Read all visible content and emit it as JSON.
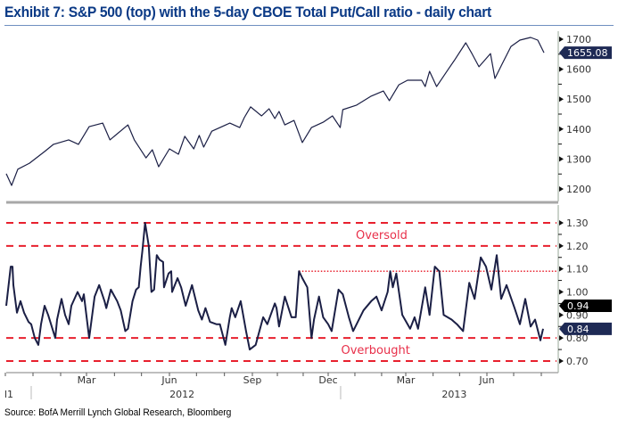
{
  "title": "Exhibit 7: S&P 500 (top) with the 5-day CBOE Total Put/Call ratio - daily chart",
  "source": "Source: BofA Merrill Lynch Global Research, Bloomberg",
  "colors": {
    "title": "#0b3a86",
    "series": "#1b1f45",
    "threshold": "#e8202e",
    "last_value_tag": "#1e2a55",
    "secondary_tag": "#000000"
  },
  "x_axis": {
    "month_labels": [
      "Mar",
      "Jun",
      "Sep",
      "Dec",
      "Mar",
      "Jun"
    ],
    "month_dates": [
      "2012-03-01",
      "2012-06-01",
      "2012-09-01",
      "2012-12-01",
      "2013-03-01",
      "2013-06-01"
    ],
    "year_labels": [
      "l1",
      "2012",
      "2013"
    ]
  },
  "chart_data": [
    {
      "type": "line",
      "panel": "top",
      "series_label": "S&P 500",
      "ylim": [
        1180,
        1730
      ],
      "yticks": [
        "1700",
        "1600",
        "1500",
        "1400",
        "1300",
        "1200"
      ],
      "ytick_values": [
        1700,
        1600,
        1500,
        1400,
        1300,
        1200
      ],
      "last_value_label": "1655.08",
      "grid": false,
      "points": [
        [
          "2011-12-02",
          1251
        ],
        [
          "2011-12-08",
          1212
        ],
        [
          "2011-12-15",
          1266
        ],
        [
          "2011-12-28",
          1286
        ],
        [
          "2012-01-14",
          1325
        ],
        [
          "2012-01-24",
          1349
        ],
        [
          "2012-02-10",
          1364
        ],
        [
          "2012-02-21",
          1349
        ],
        [
          "2012-03-04",
          1408
        ],
        [
          "2012-03-19",
          1420
        ],
        [
          "2012-03-27",
          1364
        ],
        [
          "2012-04-16",
          1414
        ],
        [
          "2012-04-23",
          1364
        ],
        [
          "2012-05-06",
          1304
        ],
        [
          "2012-05-13",
          1331
        ],
        [
          "2012-05-20",
          1274
        ],
        [
          "2012-06-01",
          1334
        ],
        [
          "2012-06-11",
          1316
        ],
        [
          "2012-06-18",
          1376
        ],
        [
          "2012-06-28",
          1334
        ],
        [
          "2012-07-04",
          1379
        ],
        [
          "2012-07-09",
          1340
        ],
        [
          "2012-07-18",
          1393
        ],
        [
          "2012-08-07",
          1420
        ],
        [
          "2012-08-18",
          1405
        ],
        [
          "2012-08-23",
          1438
        ],
        [
          "2012-08-30",
          1474
        ],
        [
          "2012-09-12",
          1444
        ],
        [
          "2012-09-21",
          1468
        ],
        [
          "2012-09-28",
          1435
        ],
        [
          "2012-10-03",
          1459
        ],
        [
          "2012-10-10",
          1414
        ],
        [
          "2012-10-21",
          1429
        ],
        [
          "2012-10-31",
          1355
        ],
        [
          "2012-11-11",
          1405
        ],
        [
          "2012-11-25",
          1423
        ],
        [
          "2012-12-06",
          1444
        ],
        [
          "2012-12-15",
          1405
        ],
        [
          "2012-12-18",
          1465
        ],
        [
          "2013-01-03",
          1480
        ],
        [
          "2013-01-20",
          1510
        ],
        [
          "2013-02-03",
          1527
        ],
        [
          "2013-02-10",
          1495
        ],
        [
          "2013-02-21",
          1548
        ],
        [
          "2013-03-03",
          1563
        ],
        [
          "2013-03-19",
          1563
        ],
        [
          "2013-03-23",
          1542
        ],
        [
          "2013-03-28",
          1593
        ],
        [
          "2013-04-05",
          1542
        ],
        [
          "2013-04-18",
          1599
        ],
        [
          "2013-04-25",
          1629
        ],
        [
          "2013-05-08",
          1688
        ],
        [
          "2013-05-15",
          1652
        ],
        [
          "2013-05-23",
          1608
        ],
        [
          "2013-06-05",
          1652
        ],
        [
          "2013-06-10",
          1569
        ],
        [
          "2013-06-18",
          1617
        ],
        [
          "2013-06-28",
          1676
        ],
        [
          "2013-07-08",
          1697
        ],
        [
          "2013-07-20",
          1706
        ],
        [
          "2013-07-28",
          1697
        ],
        [
          "2013-08-04",
          1655.08
        ]
      ]
    },
    {
      "type": "line",
      "panel": "bottom",
      "series_label": "5-day CBOE Total Put/Call ratio",
      "ylim": [
        0.67,
        1.33
      ],
      "yticks": [
        "1.30",
        "1.20",
        "1.10",
        "1.00",
        "0.90",
        "0.80",
        "0.70"
      ],
      "ytick_values": [
        1.3,
        1.2,
        1.1,
        1.0,
        0.9,
        0.8,
        0.7
      ],
      "last_value_label": "0.84",
      "secondary_value_label": "0.94",
      "secondary_value": 0.94,
      "grid": false,
      "dashed_thresholds": [
        1.3,
        1.2,
        0.8,
        0.7
      ],
      "dotted_reference": {
        "value": 1.09,
        "from": "2012-10-27"
      },
      "annotations": [
        {
          "text": "Oversold",
          "date": "2013-02-01",
          "value": 1.25
        },
        {
          "text": "Overbought",
          "date": "2013-01-25",
          "value": 0.75
        }
      ],
      "points": [
        [
          "2011-12-02",
          0.94
        ],
        [
          "2011-12-07",
          1.11
        ],
        [
          "2011-12-09",
          1.11
        ],
        [
          "2011-12-10",
          1.03
        ],
        [
          "2011-12-14",
          0.91
        ],
        [
          "2011-12-18",
          0.96
        ],
        [
          "2011-12-22",
          0.91
        ],
        [
          "2011-12-27",
          0.87
        ],
        [
          "2011-12-30",
          0.86
        ],
        [
          "2012-01-03",
          0.8
        ],
        [
          "2012-01-07",
          0.77
        ],
        [
          "2012-01-10",
          0.86
        ],
        [
          "2012-01-14",
          0.94
        ],
        [
          "2012-01-18",
          0.9
        ],
        [
          "2012-01-26",
          0.8
        ],
        [
          "2012-01-28",
          0.88
        ],
        [
          "2012-02-02",
          0.97
        ],
        [
          "2012-02-06",
          0.9
        ],
        [
          "2012-02-10",
          0.86
        ],
        [
          "2012-02-13",
          0.94
        ],
        [
          "2012-02-20",
          1.0
        ],
        [
          "2012-02-25",
          0.96
        ],
        [
          "2012-02-27",
          0.99
        ],
        [
          "2012-03-04",
          0.8
        ],
        [
          "2012-03-10",
          0.98
        ],
        [
          "2012-03-15",
          1.03
        ],
        [
          "2012-03-21",
          0.96
        ],
        [
          "2012-03-23",
          0.93
        ],
        [
          "2012-03-28",
          1.01
        ],
        [
          "2012-04-04",
          0.96
        ],
        [
          "2012-04-08",
          0.92
        ],
        [
          "2012-04-13",
          0.83
        ],
        [
          "2012-04-16",
          0.84
        ],
        [
          "2012-04-21",
          0.96
        ],
        [
          "2012-04-25",
          1.01
        ],
        [
          "2012-04-28",
          1.02
        ],
        [
          "2012-04-30",
          1.11
        ],
        [
          "2012-05-02",
          1.18
        ],
        [
          "2012-05-05",
          1.3
        ],
        [
          "2012-05-09",
          1.2
        ],
        [
          "2012-05-12",
          1.0
        ],
        [
          "2012-05-15",
          1.01
        ],
        [
          "2012-05-18",
          1.16
        ],
        [
          "2012-05-21",
          1.14
        ],
        [
          "2012-05-25",
          1.13
        ],
        [
          "2012-05-26",
          1.02
        ],
        [
          "2012-05-31",
          1.08
        ],
        [
          "2012-06-03",
          1.09
        ],
        [
          "2012-06-04",
          1.0
        ],
        [
          "2012-06-10",
          1.06
        ],
        [
          "2012-06-14",
          1.02
        ],
        [
          "2012-06-19",
          0.94
        ],
        [
          "2012-06-26",
          1.03
        ],
        [
          "2012-07-03",
          0.92
        ],
        [
          "2012-07-07",
          0.88
        ],
        [
          "2012-07-11",
          0.93
        ],
        [
          "2012-07-16",
          0.87
        ],
        [
          "2012-07-23",
          0.86
        ],
        [
          "2012-07-27",
          0.86
        ],
        [
          "2012-08-02",
          0.77
        ],
        [
          "2012-08-07",
          0.89
        ],
        [
          "2012-08-09",
          0.93
        ],
        [
          "2012-08-13",
          0.89
        ],
        [
          "2012-08-19",
          0.96
        ],
        [
          "2012-08-25",
          0.83
        ],
        [
          "2012-08-29",
          0.75
        ],
        [
          "2012-09-05",
          0.77
        ],
        [
          "2012-09-14",
          0.89
        ],
        [
          "2012-09-19",
          0.86
        ],
        [
          "2012-09-23",
          0.9
        ],
        [
          "2012-09-28",
          0.95
        ],
        [
          "2012-09-30",
          0.93
        ],
        [
          "2012-10-03",
          0.85
        ],
        [
          "2012-10-10",
          0.98
        ],
        [
          "2012-10-18",
          0.89
        ],
        [
          "2012-10-23",
          0.89
        ],
        [
          "2012-10-27",
          1.09
        ],
        [
          "2012-10-31",
          1.06
        ],
        [
          "2012-11-06",
          1.02
        ],
        [
          "2012-11-11",
          0.8
        ],
        [
          "2012-11-14",
          0.88
        ],
        [
          "2012-11-20",
          0.98
        ],
        [
          "2012-11-25",
          0.89
        ],
        [
          "2012-12-01",
          0.86
        ],
        [
          "2012-12-05",
          0.83
        ],
        [
          "2012-12-13",
          1.01
        ],
        [
          "2012-12-18",
          0.99
        ],
        [
          "2012-12-25",
          0.89
        ],
        [
          "2012-12-30",
          0.83
        ],
        [
          "2013-01-11",
          0.92
        ],
        [
          "2013-01-20",
          0.96
        ],
        [
          "2013-01-26",
          0.98
        ],
        [
          "2013-02-01",
          0.92
        ],
        [
          "2013-02-08",
          1.0
        ],
        [
          "2013-02-11",
          1.09
        ],
        [
          "2013-02-14",
          1.02
        ],
        [
          "2013-02-18",
          1.08
        ],
        [
          "2013-02-25",
          0.9
        ],
        [
          "2013-03-06",
          0.84
        ],
        [
          "2013-03-11",
          0.89
        ],
        [
          "2013-03-15",
          0.84
        ],
        [
          "2013-03-23",
          1.02
        ],
        [
          "2013-03-28",
          0.9
        ],
        [
          "2013-04-03",
          1.11
        ],
        [
          "2013-04-08",
          1.09
        ],
        [
          "2013-04-13",
          0.9
        ],
        [
          "2013-04-22",
          0.88
        ],
        [
          "2013-04-28",
          0.86
        ],
        [
          "2013-05-05",
          0.83
        ],
        [
          "2013-05-12",
          1.04
        ],
        [
          "2013-05-18",
          0.97
        ],
        [
          "2013-05-25",
          1.15
        ],
        [
          "2013-05-31",
          1.11
        ],
        [
          "2013-06-06",
          1.01
        ],
        [
          "2013-06-12",
          1.16
        ],
        [
          "2013-06-17",
          0.97
        ],
        [
          "2013-06-23",
          1.03
        ],
        [
          "2013-07-02",
          0.93
        ],
        [
          "2013-07-08",
          0.86
        ],
        [
          "2013-07-14",
          0.97
        ],
        [
          "2013-07-20",
          0.85
        ],
        [
          "2013-07-25",
          0.88
        ],
        [
          "2013-07-31",
          0.79
        ],
        [
          "2013-08-03",
          0.84
        ]
      ]
    }
  ]
}
